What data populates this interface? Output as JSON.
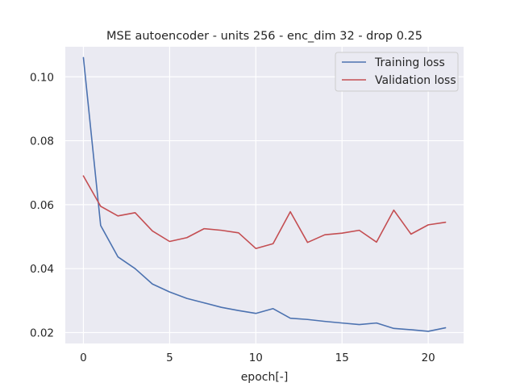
{
  "chart_data": {
    "type": "line",
    "title": "MSE autoencoder - units 256 - enc_dim 32 - drop 0.25",
    "xlabel": "epoch[-]",
    "ylabel": "",
    "xlim": [
      -1.05,
      22.05
    ],
    "ylim": [
      0.0166,
      0.1094
    ],
    "x_ticks": [
      0,
      5,
      10,
      15,
      20
    ],
    "y_ticks": [
      0.02,
      0.04,
      0.06,
      0.08,
      0.1
    ],
    "y_tick_labels": [
      "0.02",
      "0.04",
      "0.06",
      "0.08",
      "0.10"
    ],
    "grid": true,
    "legend_position": "top-right",
    "x": [
      0,
      1,
      2,
      3,
      4,
      5,
      6,
      7,
      8,
      9,
      10,
      11,
      12,
      13,
      14,
      15,
      16,
      17,
      18,
      19,
      20,
      21
    ],
    "series": [
      {
        "name": "Training loss",
        "color": "#4c72b0",
        "values": [
          0.106,
          0.0535,
          0.0437,
          0.04,
          0.0352,
          0.0327,
          0.0307,
          0.0293,
          0.0279,
          0.0269,
          0.026,
          0.0275,
          0.0245,
          0.0241,
          0.0235,
          0.023,
          0.0225,
          0.023,
          0.0213,
          0.0209,
          0.0204,
          0.0215
        ]
      },
      {
        "name": "Validation loss",
        "color": "#c44e52",
        "values": [
          0.069,
          0.0595,
          0.0565,
          0.0575,
          0.0518,
          0.0485,
          0.0497,
          0.0525,
          0.052,
          0.0512,
          0.0463,
          0.0478,
          0.0578,
          0.0482,
          0.0506,
          0.0511,
          0.052,
          0.0483,
          0.0583,
          0.0508,
          0.0537,
          0.0545
        ]
      }
    ]
  }
}
